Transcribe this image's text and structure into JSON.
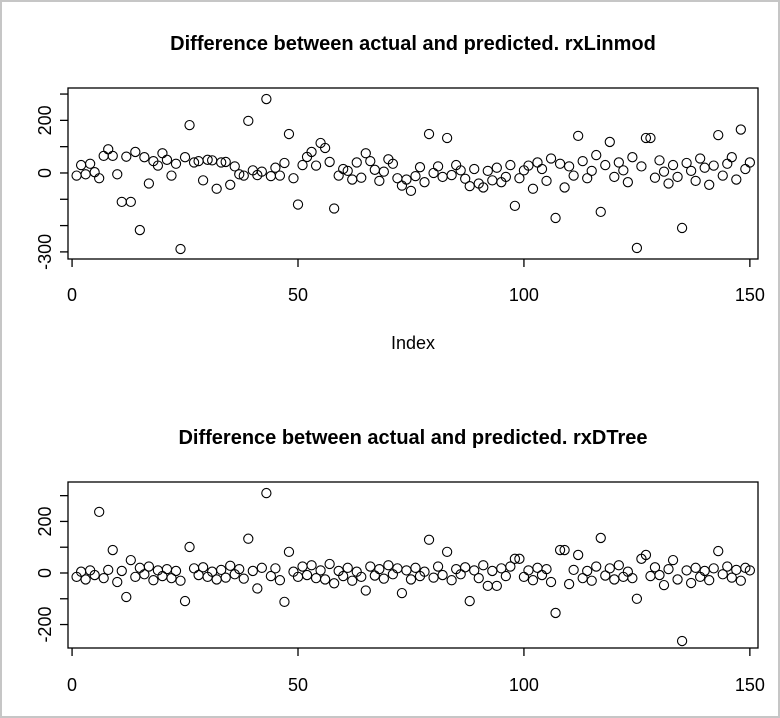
{
  "window": {
    "background": "#ffffff",
    "border_color": "#c6c6c6",
    "ink_color": "#000000"
  },
  "chart_data": [
    {
      "type": "scatter",
      "title": "Difference between actual and predicted. rxLinmod",
      "xlabel": "Index",
      "ylabel": "",
      "marker": "open-circle",
      "x_start": 1,
      "xlim": [
        -0.9,
        151.8
      ],
      "ylim": [
        -327,
        323
      ],
      "x_ticks": [
        0,
        50,
        100,
        150
      ],
      "x_tick_labels": [
        "0",
        "50",
        "100",
        "150"
      ],
      "y_ticks": [
        300,
        200,
        100,
        0,
        -100,
        -200,
        -300
      ],
      "y_tick_labels": [
        "",
        "200",
        "",
        "0",
        "",
        "",
        "-300"
      ],
      "grid": false,
      "legend": "none",
      "values": [
        -10,
        30,
        -5,
        35,
        3,
        -20,
        65,
        90,
        65,
        -5,
        -110,
        62,
        -110,
        80,
        -217,
        60,
        -40,
        45,
        28,
        75,
        50,
        -10,
        35,
        -289,
        60,
        182,
        40,
        45,
        -28,
        50,
        48,
        -60,
        40,
        42,
        -45,
        25,
        -5,
        -10,
        198,
        10,
        -8,
        5,
        281,
        -12,
        20,
        -10,
        38,
        148,
        -20,
        -120,
        30,
        61,
        80,
        28,
        114,
        95,
        42,
        -135,
        -10,
        15,
        8,
        -25,
        40,
        -18,
        75,
        45,
        12,
        -30,
        5,
        52,
        35,
        -20,
        -48,
        -25,
        -68,
        -12,
        22,
        -35,
        148,
        0,
        25,
        -15,
        133,
        -8,
        30,
        10,
        -22,
        -50,
        15,
        -40,
        -55,
        8,
        -28,
        20,
        -35,
        -15,
        30,
        -125,
        -20,
        10,
        28,
        -60,
        40,
        15,
        -30,
        55,
        -171,
        35,
        -55,
        25,
        -10,
        141,
        45,
        -20,
        8,
        68,
        -148,
        30,
        118,
        -15,
        40,
        10,
        -35,
        60,
        -285,
        25,
        133,
        133,
        -18,
        48,
        5,
        -40,
        30,
        -15,
        -209,
        38,
        8,
        -30,
        55,
        20,
        -45,
        28,
        144,
        -10,
        35,
        60,
        -25,
        165,
        15,
        40
      ]
    },
    {
      "type": "scatter",
      "title": "Difference between actual and predicted. rxDTree",
      "xlabel": "",
      "ylabel": "",
      "marker": "open-circle",
      "x_start": 1,
      "xlim": [
        -0.9,
        151.8
      ],
      "ylim": [
        -291,
        353
      ],
      "x_ticks": [
        0,
        50,
        100,
        150
      ],
      "x_tick_labels": [
        "0",
        "50",
        "100",
        "150"
      ],
      "y_ticks": [
        300,
        200,
        100,
        0,
        -100,
        -200
      ],
      "y_tick_labels": [
        "",
        "200",
        "",
        "0",
        "",
        "-200"
      ],
      "grid": false,
      "legend": "none",
      "values": [
        -15,
        5,
        -25,
        10,
        -8,
        237,
        -20,
        12,
        89,
        -35,
        8,
        -93,
        50,
        -15,
        20,
        -5,
        25,
        -28,
        10,
        -12,
        15,
        -20,
        8,
        -30,
        -109,
        101,
        18,
        -8,
        22,
        -15,
        5,
        -25,
        12,
        -18,
        28,
        -5,
        15,
        -22,
        133,
        8,
        -60,
        20,
        310,
        -12,
        18,
        -28,
        -112,
        82,
        5,
        -15,
        25,
        -8,
        30,
        -20,
        10,
        -25,
        35,
        -40,
        8,
        -12,
        20,
        -30,
        5,
        -15,
        -68,
        25,
        -10,
        15,
        -22,
        30,
        -5,
        18,
        -78,
        10,
        -25,
        20,
        -12,
        5,
        129,
        -18,
        25,
        -8,
        82,
        -28,
        15,
        -5,
        22,
        -109,
        10,
        -20,
        30,
        -50,
        8,
        -50,
        18,
        -12,
        25,
        55,
        55,
        -15,
        10,
        -28,
        20,
        -8,
        15,
        -35,
        -155,
        89,
        89,
        -43,
        12,
        70,
        -20,
        8,
        -30,
        25,
        136,
        -10,
        18,
        -25,
        30,
        -15,
        5,
        -20,
        -100,
        55,
        70,
        -12,
        22,
        -8,
        -47,
        15,
        50,
        -25,
        -264,
        10,
        -39,
        20,
        -15,
        8,
        -28,
        18,
        85,
        -5,
        25,
        -18,
        12,
        -30,
        20,
        10
      ]
    }
  ]
}
